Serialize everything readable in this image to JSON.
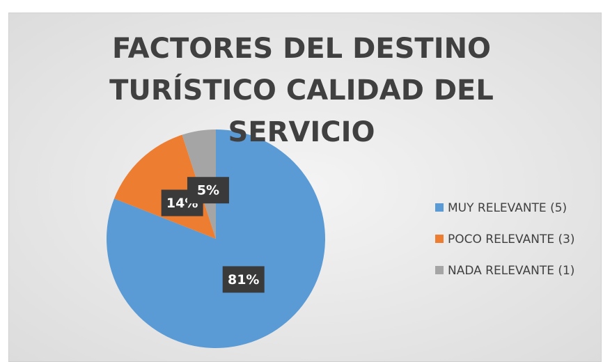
{
  "chart_data": {
    "type": "pie",
    "title": "FACTORES DEL DESTINO TURÍSTICO CALIDAD DEL SERVICIO",
    "categories": [
      "MUY RELEVANTE (5)",
      "POCO RELEVANTE (3)",
      "NADA RELEVANTE (1)"
    ],
    "values": [
      81,
      14,
      5
    ],
    "value_labels": [
      "81%",
      "14%",
      "5%"
    ],
    "colors": [
      "#5b9bd5",
      "#ed7d31",
      "#a5a5a5"
    ],
    "legend": "right"
  }
}
